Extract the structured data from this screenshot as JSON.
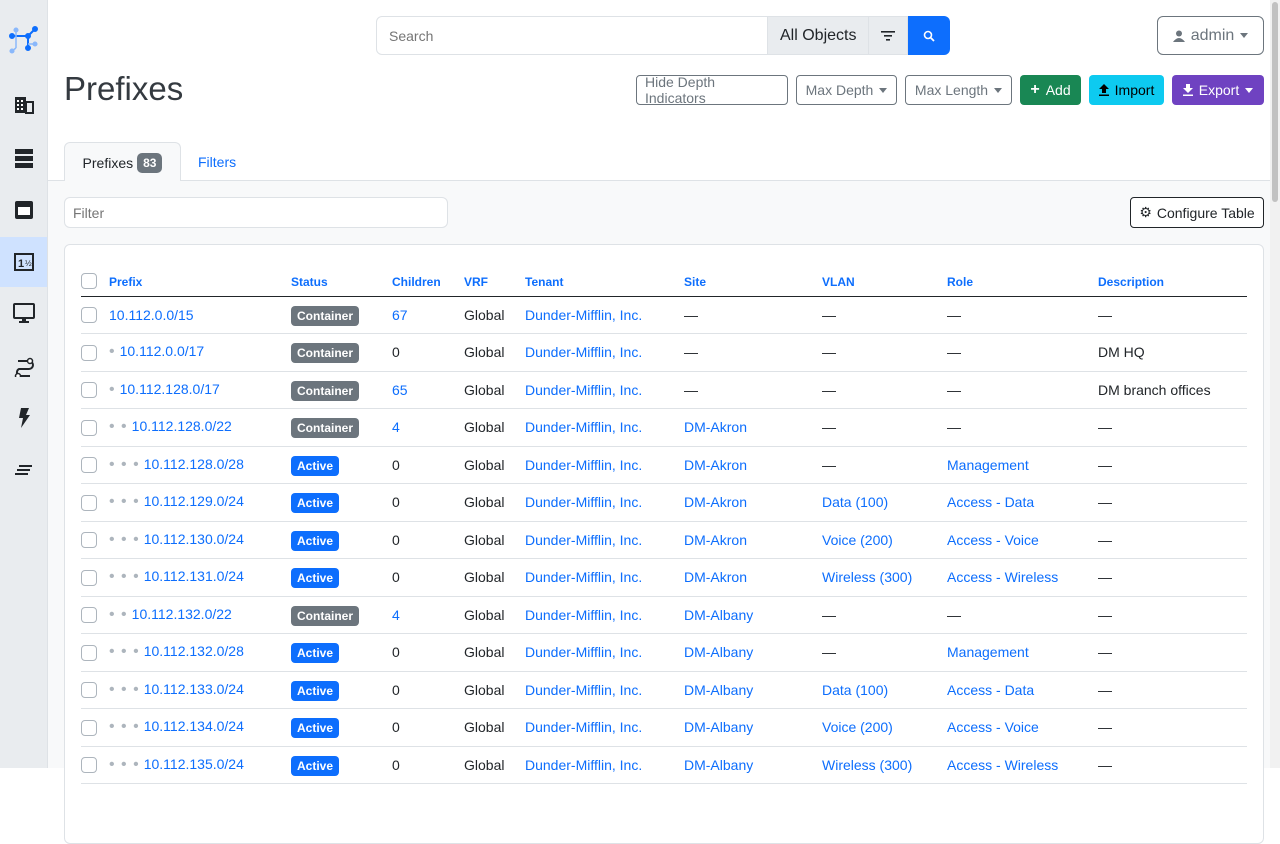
{
  "search": {
    "placeholder": "Search",
    "scope": "All Objects"
  },
  "user": {
    "name": "admin"
  },
  "page_title": "Prefixes",
  "toolbar": {
    "hide_depth": "Hide Depth Indicators",
    "max_depth": "Max Depth",
    "max_length": "Max Length",
    "add": "Add",
    "import": "Import",
    "export": "Export"
  },
  "colors": {
    "primary": "#0d6efd",
    "add": "#198754",
    "import": "#0dcaf0",
    "export": "#6f42c1",
    "container": "#6c757d",
    "active": "#0d6efd"
  },
  "tabs": [
    {
      "label": "Prefixes",
      "count": "83"
    },
    {
      "label": "Filters"
    }
  ],
  "filter": {
    "placeholder": "Filter"
  },
  "configure_table": "Configure Table",
  "columns": [
    "Prefix",
    "Status",
    "Children",
    "VRF",
    "Tenant",
    "Site",
    "VLAN",
    "Role",
    "Description"
  ],
  "rows": [
    {
      "depth": 0,
      "prefix": "10.112.0.0/15",
      "status": "Container",
      "children": "67",
      "children_link": true,
      "vrf": "Global",
      "tenant": "Dunder-Mifflin, Inc.",
      "site": "—",
      "vlan": "—",
      "role": "—",
      "description": "—"
    },
    {
      "depth": 1,
      "prefix": "10.112.0.0/17",
      "status": "Container",
      "children": "0",
      "children_link": false,
      "vrf": "Global",
      "tenant": "Dunder-Mifflin, Inc.",
      "site": "—",
      "vlan": "—",
      "role": "—",
      "description": "DM HQ"
    },
    {
      "depth": 1,
      "prefix": "10.112.128.0/17",
      "status": "Container",
      "children": "65",
      "children_link": true,
      "vrf": "Global",
      "tenant": "Dunder-Mifflin, Inc.",
      "site": "—",
      "vlan": "—",
      "role": "—",
      "description": "DM branch offices"
    },
    {
      "depth": 2,
      "prefix": "10.112.128.0/22",
      "status": "Container",
      "children": "4",
      "children_link": true,
      "vrf": "Global",
      "tenant": "Dunder-Mifflin, Inc.",
      "site": "DM-Akron",
      "vlan": "—",
      "role": "—",
      "description": "—"
    },
    {
      "depth": 3,
      "prefix": "10.112.128.0/28",
      "status": "Active",
      "children": "0",
      "children_link": false,
      "vrf": "Global",
      "tenant": "Dunder-Mifflin, Inc.",
      "site": "DM-Akron",
      "vlan": "—",
      "role": "Management",
      "description": "—"
    },
    {
      "depth": 3,
      "prefix": "10.112.129.0/24",
      "status": "Active",
      "children": "0",
      "children_link": false,
      "vrf": "Global",
      "tenant": "Dunder-Mifflin, Inc.",
      "site": "DM-Akron",
      "vlan": "Data (100)",
      "role": "Access - Data",
      "description": "—"
    },
    {
      "depth": 3,
      "prefix": "10.112.130.0/24",
      "status": "Active",
      "children": "0",
      "children_link": false,
      "vrf": "Global",
      "tenant": "Dunder-Mifflin, Inc.",
      "site": "DM-Akron",
      "vlan": "Voice (200)",
      "role": "Access - Voice",
      "description": "—"
    },
    {
      "depth": 3,
      "prefix": "10.112.131.0/24",
      "status": "Active",
      "children": "0",
      "children_link": false,
      "vrf": "Global",
      "tenant": "Dunder-Mifflin, Inc.",
      "site": "DM-Akron",
      "vlan": "Wireless (300)",
      "role": "Access - Wireless",
      "description": "—"
    },
    {
      "depth": 2,
      "prefix": "10.112.132.0/22",
      "status": "Container",
      "children": "4",
      "children_link": true,
      "vrf": "Global",
      "tenant": "Dunder-Mifflin, Inc.",
      "site": "DM-Albany",
      "vlan": "—",
      "role": "—",
      "description": "—"
    },
    {
      "depth": 3,
      "prefix": "10.112.132.0/28",
      "status": "Active",
      "children": "0",
      "children_link": false,
      "vrf": "Global",
      "tenant": "Dunder-Mifflin, Inc.",
      "site": "DM-Albany",
      "vlan": "—",
      "role": "Management",
      "description": "—"
    },
    {
      "depth": 3,
      "prefix": "10.112.133.0/24",
      "status": "Active",
      "children": "0",
      "children_link": false,
      "vrf": "Global",
      "tenant": "Dunder-Mifflin, Inc.",
      "site": "DM-Albany",
      "vlan": "Data (100)",
      "role": "Access - Data",
      "description": "—"
    },
    {
      "depth": 3,
      "prefix": "10.112.134.0/24",
      "status": "Active",
      "children": "0",
      "children_link": false,
      "vrf": "Global",
      "tenant": "Dunder-Mifflin, Inc.",
      "site": "DM-Albany",
      "vlan": "Voice (200)",
      "role": "Access - Voice",
      "description": "—"
    },
    {
      "depth": 3,
      "prefix": "10.112.135.0/24",
      "status": "Active",
      "children": "0",
      "children_link": false,
      "vrf": "Global",
      "tenant": "Dunder-Mifflin, Inc.",
      "site": "DM-Albany",
      "vlan": "Wireless (300)",
      "role": "Access - Wireless",
      "description": "—"
    }
  ]
}
